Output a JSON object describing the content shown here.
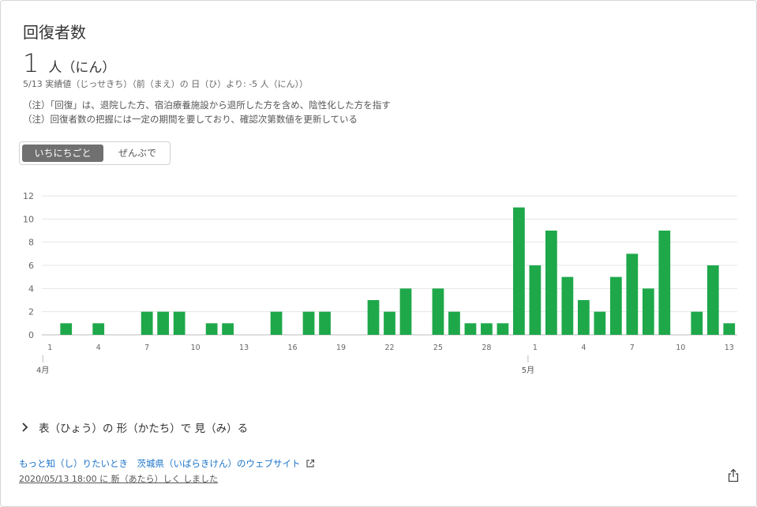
{
  "card": {
    "title": "回復者数",
    "big_number": "1",
    "big_unit": "人（にん）",
    "sub_line": "5/13 実績値（じっせきち）（前（まえ）の 日（ひ）より: -5 人（にん））",
    "notes": [
      "（注）「回復」は、退院した方、宿泊療養施設から退所した方を含め、陰性化した方を指す",
      "（注）回復者数の把握には一定の期間を要しており、確認次第数値を更新している"
    ]
  },
  "toggle": {
    "daily_label": "いちにちごと",
    "total_label": "ぜんぶで",
    "selected": "daily"
  },
  "chart_data": {
    "type": "bar",
    "color": "#1ea84a",
    "x": [
      "4/1",
      "4/2",
      "4/3",
      "4/4",
      "4/5",
      "4/6",
      "4/7",
      "4/8",
      "4/9",
      "4/10",
      "4/11",
      "4/12",
      "4/13",
      "4/14",
      "4/15",
      "4/16",
      "4/17",
      "4/18",
      "4/19",
      "4/20",
      "4/21",
      "4/22",
      "4/23",
      "4/24",
      "4/25",
      "4/26",
      "4/27",
      "4/28",
      "4/29",
      "4/30",
      "5/1",
      "5/2",
      "5/3",
      "5/4",
      "5/5",
      "5/6",
      "5/7",
      "5/8",
      "5/9",
      "5/10",
      "5/11",
      "5/12",
      "5/13"
    ],
    "values": [
      0,
      1,
      0,
      1,
      0,
      0,
      2,
      2,
      2,
      0,
      1,
      1,
      0,
      0,
      2,
      0,
      2,
      2,
      0,
      0,
      3,
      2,
      4,
      0,
      4,
      2,
      1,
      1,
      1,
      11,
      6,
      9,
      5,
      3,
      2,
      5,
      7,
      4,
      9,
      0,
      2,
      6,
      1
    ],
    "ylim": [
      0,
      12
    ],
    "yticks": [
      "0",
      "2",
      "4",
      "6",
      "8",
      "10",
      "12"
    ],
    "xtick_labels": [
      {
        "index": 0,
        "label": "1"
      },
      {
        "index": 3,
        "label": "4"
      },
      {
        "index": 6,
        "label": "7"
      },
      {
        "index": 9,
        "label": "10"
      },
      {
        "index": 12,
        "label": "13"
      },
      {
        "index": 15,
        "label": "16"
      },
      {
        "index": 18,
        "label": "19"
      },
      {
        "index": 21,
        "label": "22"
      },
      {
        "index": 24,
        "label": "25"
      },
      {
        "index": 27,
        "label": "28"
      },
      {
        "index": 30,
        "label": "1"
      },
      {
        "index": 33,
        "label": "4"
      },
      {
        "index": 36,
        "label": "7"
      },
      {
        "index": 39,
        "label": "10"
      },
      {
        "index": 42,
        "label": "13"
      }
    ],
    "month_labels": [
      {
        "index": 0,
        "label": "4月"
      },
      {
        "index": 30,
        "label": "5月"
      }
    ],
    "grid": true
  },
  "footer": {
    "expander_label": "表（ひょう）の 形（かたち）で 見（み）る",
    "link_label": "もっと知（し）りたいとき　茨城県（いばらきけん）のウェブサイト",
    "updated_label": "2020/05/13 18:00 に 新（あたら）しく しました"
  }
}
